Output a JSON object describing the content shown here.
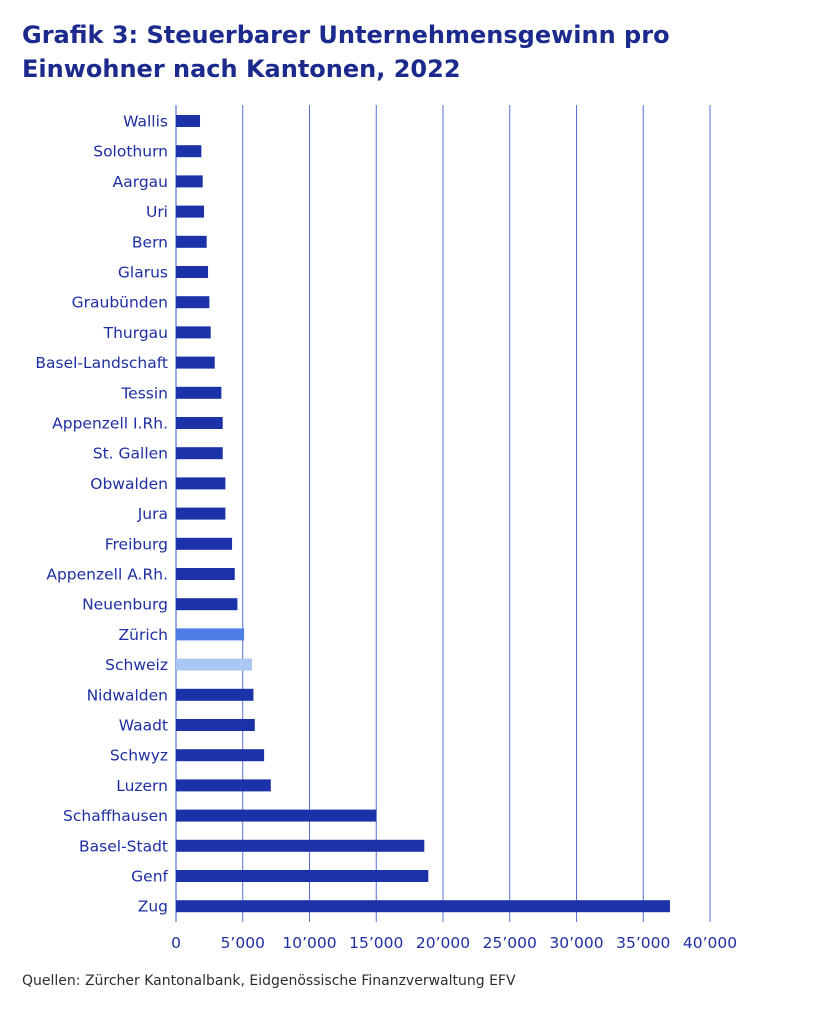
{
  "title": "Grafik 3: Steuerbarer Unternehmensgewinn pro Einwohner nach Kantonen, 2022",
  "source": "Quellen: Zürcher Kantonalbank, Eidgenössische Finanzverwaltung EFV",
  "colors": {
    "bar_default": "#1c32a8",
    "bar_zurich": "#4f7de8",
    "bar_schweiz": "#a9c7f2",
    "grid": "#5571d6",
    "text": "#1d2fa3",
    "title": "#1b2a8c"
  },
  "chart_data": {
    "type": "bar",
    "orientation": "horizontal",
    "title": "Grafik 3: Steuerbarer Unternehmensgewinn pro Einwohner nach Kantonen, 2022",
    "xlabel": "",
    "ylabel": "",
    "xlim": [
      0,
      40000
    ],
    "grid": true,
    "ticks": [
      0,
      5000,
      10000,
      15000,
      20000,
      25000,
      30000,
      35000,
      40000
    ],
    "tick_labels": [
      "0",
      "5’000",
      "10’000",
      "15’000",
      "20’000",
      "25’000",
      "30’000",
      "35’000",
      "40’000"
    ],
    "categories": [
      "Wallis",
      "Solothurn",
      "Aargau",
      "Uri",
      "Bern",
      "Glarus",
      "Graubünden",
      "Thurgau",
      "Basel-Landschaft",
      "Tessin",
      "Appenzell I.Rh.",
      "St. Gallen",
      "Obwalden",
      "Jura",
      "Freiburg",
      "Appenzell A.Rh.",
      "Neuenburg",
      "Zürich",
      "Schweiz",
      "Nidwalden",
      "Waadt",
      "Schwyz",
      "Luzern",
      "Schaffhausen",
      "Basel-Stadt",
      "Genf",
      "Zug"
    ],
    "values": [
      1800,
      1900,
      2000,
      2100,
      2300,
      2400,
      2500,
      2600,
      2900,
      3400,
      3500,
      3500,
      3700,
      3700,
      4200,
      4400,
      4600,
      5100,
      5700,
      5800,
      5900,
      6600,
      7100,
      15000,
      18600,
      18900,
      37000
    ],
    "highlight": {
      "Zürich": "bar_zurich",
      "Schweiz": "bar_schweiz"
    }
  }
}
